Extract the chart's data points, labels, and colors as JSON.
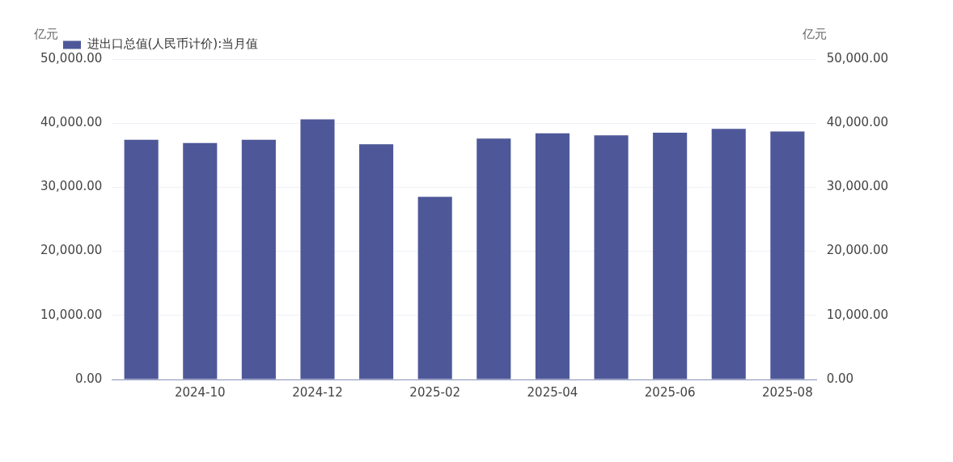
{
  "chart_data": {
    "type": "bar",
    "categories": [
      null,
      "2024-10",
      null,
      "2024-12",
      null,
      "2025-02",
      null,
      "2025-04",
      null,
      "2025-06",
      null,
      "2025-08"
    ],
    "series": [
      {
        "name": "进出口总值(人民币计价):当月值",
        "color": "#4e5899",
        "values": [
          37400,
          36900,
          37400,
          40600,
          36700,
          28500,
          37600,
          38400,
          38100,
          38500,
          39100,
          38700
        ]
      }
    ],
    "ylabel": "亿元",
    "y2label": "亿元",
    "ylim": [
      0,
      50000
    ],
    "yticks": [
      {
        "value": 0,
        "label": "0.00"
      },
      {
        "value": 10000,
        "label": "10,000.00"
      },
      {
        "value": 20000,
        "label": "20,000.00"
      },
      {
        "value": 30000,
        "label": "30,000.00"
      },
      {
        "value": 40000,
        "label": "40,000.00"
      },
      {
        "value": 50000,
        "label": "50,000.00"
      }
    ],
    "y2lim": [
      0,
      50000
    ],
    "y2ticks": [
      {
        "value": 0,
        "label": "0.00"
      },
      {
        "value": 10000,
        "label": "10,000.00"
      },
      {
        "value": 20000,
        "label": "20,000.00"
      },
      {
        "value": 30000,
        "label": "30,000.00"
      },
      {
        "value": 40000,
        "label": "40,000.00"
      },
      {
        "value": 50000,
        "label": "50,000.00"
      }
    ],
    "grid": "y",
    "legend": "top left"
  }
}
